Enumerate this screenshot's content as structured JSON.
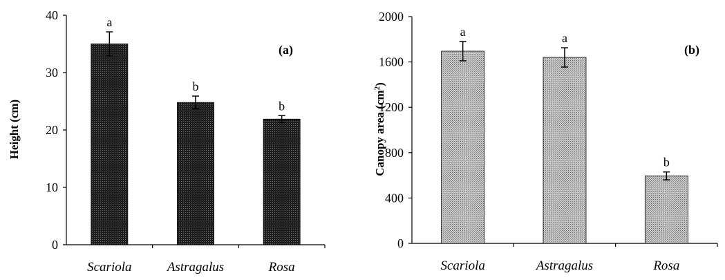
{
  "chart_data": [
    {
      "type": "bar",
      "panel_label": "(a)",
      "ylabel": "Height (cm)",
      "categories": [
        "Scariola",
        "Astragalus",
        "Rosa"
      ],
      "values": [
        35,
        24.8,
        21.9
      ],
      "errors": [
        2.1,
        1.1,
        0.6
      ],
      "significance": [
        "a",
        "b",
        "b"
      ],
      "ylim": [
        0,
        40
      ],
      "yticks": [
        0,
        10,
        20,
        30,
        40
      ],
      "grid": false,
      "bar_color": "#1e1e1e"
    },
    {
      "type": "bar",
      "panel_label": "(b)",
      "ylabel": "Canopy area (cm",
      "ylabel_superscript": "2",
      "ylabel_suffix": ")",
      "categories": [
        "Scariola",
        "Astragalus",
        "Rosa"
      ],
      "values": [
        1695,
        1640,
        595
      ],
      "errors": [
        85,
        85,
        35
      ],
      "significance": [
        "a",
        "a",
        "b"
      ],
      "ylim": [
        0,
        2000
      ],
      "yticks": [
        0,
        400,
        800,
        1200,
        1600,
        2000
      ],
      "grid": false,
      "bar_color": "#b5b5b5"
    }
  ]
}
